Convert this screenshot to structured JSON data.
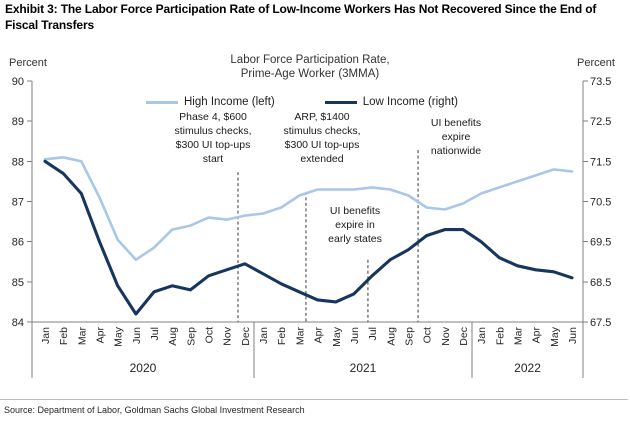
{
  "exhibit_title": "Exhibit 3: The Labor Force Participation Rate of Low-Income Workers Has Not Recovered Since the End of Fiscal Transfers",
  "source_line": "Source: Department of Labor, Goldman Sachs Global Investment Research",
  "chart_data": {
    "type": "line",
    "title": "Labor Force Participation Rate,\nPrime-Age Worker (3MMA)",
    "grid": false,
    "legend_position": "top-center",
    "left_axis": {
      "label": "Percent",
      "min": 84,
      "max": 90,
      "ticks": [
        90,
        89,
        88,
        87,
        86,
        85,
        84
      ]
    },
    "right_axis": {
      "label": "Percent",
      "min": 67.5,
      "max": 73.5,
      "ticks": [
        73.5,
        72.5,
        71.5,
        70.5,
        69.5,
        68.5,
        67.5
      ]
    },
    "x_categories": [
      "Jan",
      "Feb",
      "Mar",
      "Apr",
      "May",
      "Jun",
      "Jul",
      "Aug",
      "Sep",
      "Oct",
      "Nov",
      "Dec",
      "Jan",
      "Feb",
      "Mar",
      "Apr",
      "May",
      "Jun",
      "Jul",
      "Aug",
      "Sep",
      "Oct",
      "Nov",
      "Dec",
      "Jan",
      "Feb",
      "Mar",
      "Apr",
      "May",
      "Jun"
    ],
    "year_groups": [
      {
        "label": "2020",
        "count": 12
      },
      {
        "label": "2021",
        "count": 12
      },
      {
        "label": "2022",
        "count": 6
      }
    ],
    "series": [
      {
        "name": "High Income (left)",
        "axis": "left",
        "color": "#a9c7e8",
        "values": [
          88.05,
          88.1,
          88.0,
          87.1,
          86.05,
          85.55,
          85.85,
          86.3,
          86.4,
          86.6,
          86.55,
          86.65,
          86.7,
          86.85,
          87.15,
          87.3,
          87.3,
          87.3,
          87.35,
          87.3,
          87.15,
          86.85,
          86.8,
          86.95,
          87.2,
          87.35,
          87.5,
          87.65,
          87.8,
          87.75
        ]
      },
      {
        "name": "Low Income (right)",
        "axis": "right",
        "color": "#17365d",
        "values": [
          71.5,
          71.2,
          70.7,
          69.5,
          68.4,
          67.7,
          68.25,
          68.4,
          68.3,
          68.65,
          68.8,
          68.95,
          68.7,
          68.45,
          68.25,
          68.05,
          68.0,
          68.2,
          68.65,
          69.05,
          69.3,
          69.65,
          69.8,
          69.8,
          69.5,
          69.1,
          68.9,
          68.8,
          68.75,
          68.6
        ]
      }
    ],
    "event_lines": [
      {
        "x_index": 10.62,
        "top_left_value": 87.73
      },
      {
        "x_index": 14.36,
        "top_left_value": 87.24
      },
      {
        "x_index": 17.77,
        "top_left_value": 85.55
      },
      {
        "x_index": 20.53,
        "top_left_value": 88.28
      }
    ],
    "annotations": [
      {
        "text": "Phase 4, $600\nstimulus checks,\n$300 UI top-ups\nstart"
      },
      {
        "text": "ARP, $1400\nstimulus checks,\n$300 UI top-ups\nextended"
      },
      {
        "text": "UI benefits\nexpire in\nearly states"
      },
      {
        "text": "UI benefits\nexpire\nnationwide"
      }
    ]
  }
}
